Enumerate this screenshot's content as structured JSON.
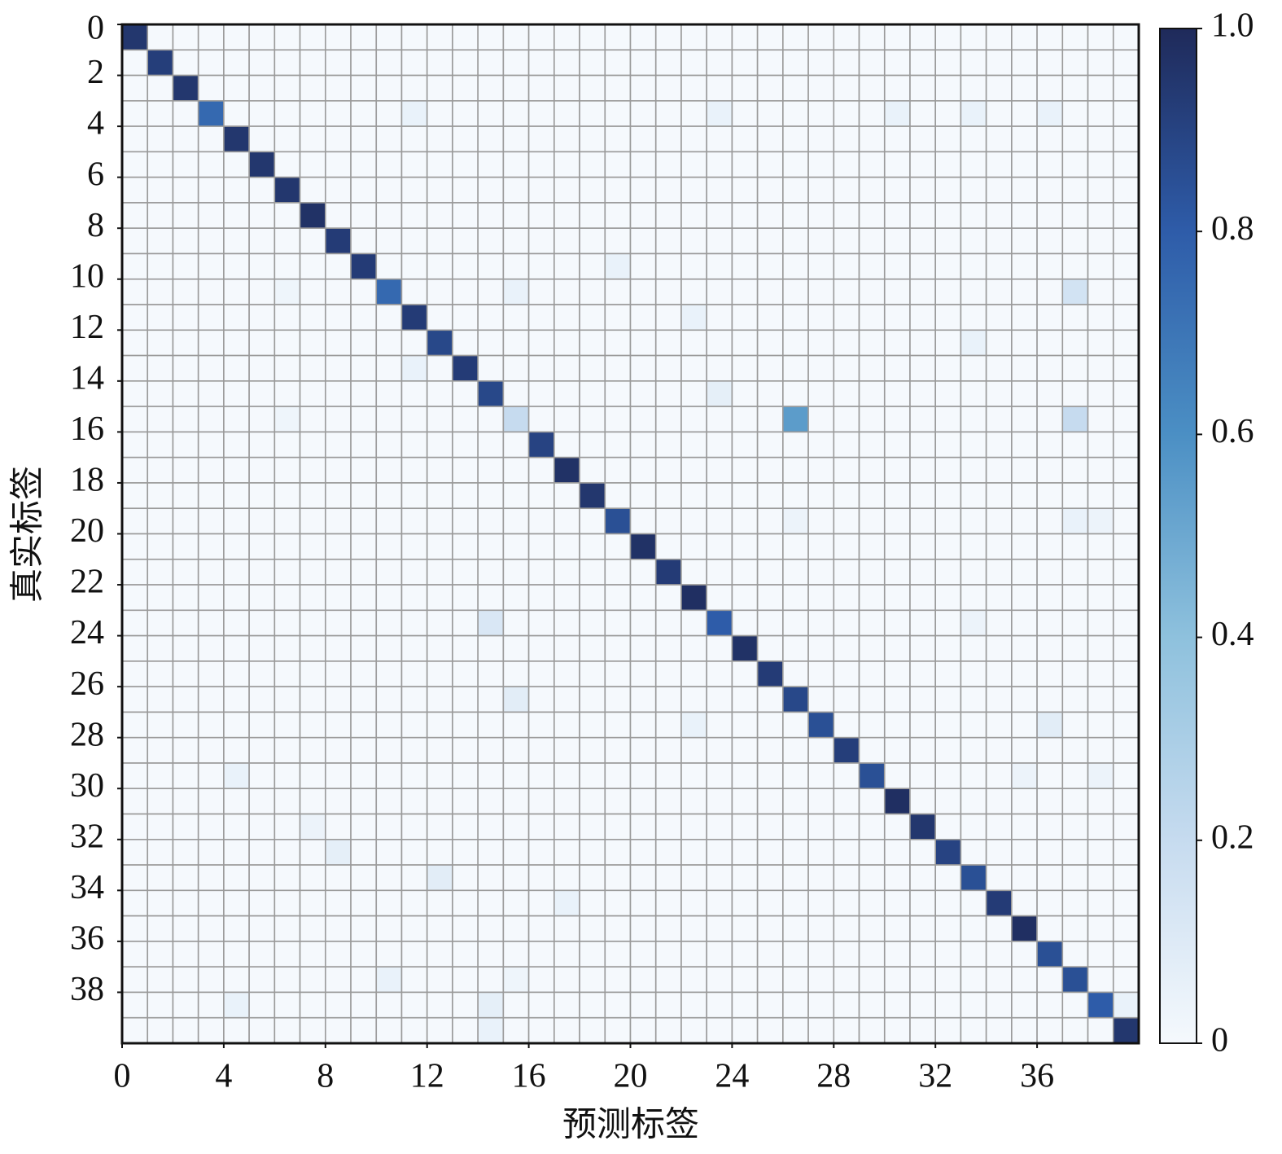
{
  "chart_data": {
    "type": "heatmap",
    "xlabel": "预测标签",
    "ylabel": "真实标签",
    "xlim": [
      0,
      40
    ],
    "ylim": [
      0,
      40
    ],
    "xticks": [
      0,
      4,
      8,
      12,
      16,
      20,
      24,
      28,
      32,
      36
    ],
    "yticks": [
      0,
      2,
      4,
      6,
      8,
      10,
      12,
      14,
      16,
      18,
      20,
      22,
      24,
      26,
      28,
      30,
      32,
      34,
      36,
      38
    ],
    "clim": [
      0,
      1
    ],
    "cticks": [
      0,
      0.2,
      0.4,
      0.6,
      0.8,
      {
        "value": 1,
        "label": "1.0"
      }
    ],
    "colormap": [
      "#f5f9fd",
      "#c6dbef",
      "#8ec1dd",
      "#4b8fc4",
      "#2e5ca9",
      "#1f2a5a"
    ],
    "values": [
      [
        0.95,
        0,
        0,
        0,
        0,
        0,
        0,
        0,
        0,
        0,
        0,
        0,
        0,
        0,
        0,
        0,
        0,
        0,
        0,
        0,
        0,
        0,
        0,
        0,
        0,
        0,
        0,
        0,
        0,
        0,
        0,
        0,
        0,
        0,
        0,
        0,
        0,
        0,
        0,
        0
      ],
      [
        0,
        0.92,
        0,
        0,
        0,
        0,
        0,
        0,
        0,
        0,
        0,
        0,
        0,
        0,
        0,
        0,
        0,
        0,
        0,
        0,
        0,
        0,
        0,
        0,
        0,
        0,
        0,
        0,
        0,
        0,
        0,
        0,
        0,
        0,
        0,
        0,
        0,
        0,
        0,
        0
      ],
      [
        0,
        0,
        0.95,
        0,
        0,
        0,
        0,
        0,
        0,
        0,
        0,
        0,
        0,
        0,
        0,
        0,
        0,
        0,
        0,
        0,
        0,
        0,
        0,
        0,
        0,
        0,
        0,
        0,
        0,
        0,
        0,
        0,
        0,
        0,
        0,
        0,
        0,
        0,
        0,
        0
      ],
      [
        0,
        0,
        0,
        0.75,
        0,
        0,
        0,
        0,
        0,
        0,
        0,
        0.05,
        0,
        0,
        0,
        0,
        0,
        0,
        0,
        0,
        0,
        0,
        0,
        0.05,
        0,
        0,
        0,
        0,
        0,
        0,
        0.05,
        0,
        0,
        0.05,
        0,
        0,
        0.05,
        0,
        0,
        0
      ],
      [
        0,
        0,
        0,
        0,
        0.95,
        0,
        0,
        0,
        0,
        0,
        0,
        0,
        0,
        0,
        0,
        0,
        0,
        0,
        0,
        0,
        0,
        0,
        0,
        0,
        0,
        0,
        0,
        0,
        0,
        0,
        0,
        0,
        0,
        0,
        0,
        0,
        0,
        0,
        0,
        0
      ],
      [
        0,
        0,
        0,
        0,
        0,
        0.95,
        0,
        0,
        0,
        0,
        0,
        0,
        0,
        0,
        0,
        0,
        0,
        0,
        0,
        0,
        0,
        0,
        0,
        0,
        0,
        0,
        0,
        0,
        0,
        0,
        0,
        0,
        0,
        0,
        0,
        0,
        0,
        0,
        0,
        0
      ],
      [
        0,
        0,
        0,
        0,
        0,
        0,
        0.95,
        0,
        0,
        0,
        0,
        0,
        0,
        0,
        0,
        0,
        0,
        0,
        0,
        0,
        0,
        0,
        0,
        0,
        0,
        0,
        0,
        0,
        0,
        0,
        0,
        0,
        0,
        0,
        0,
        0,
        0,
        0,
        0,
        0
      ],
      [
        0,
        0,
        0,
        0,
        0,
        0,
        0,
        0.97,
        0,
        0,
        0,
        0,
        0,
        0,
        0,
        0,
        0,
        0,
        0,
        0,
        0,
        0,
        0,
        0,
        0,
        0,
        0,
        0,
        0,
        0,
        0,
        0,
        0,
        0,
        0,
        0,
        0,
        0,
        0,
        0
      ],
      [
        0,
        0,
        0,
        0,
        0,
        0,
        0,
        0,
        0.93,
        0,
        0,
        0,
        0,
        0,
        0,
        0,
        0,
        0,
        0,
        0,
        0,
        0,
        0,
        0,
        0,
        0,
        0,
        0,
        0,
        0,
        0,
        0,
        0,
        0,
        0,
        0,
        0,
        0,
        0,
        0
      ],
      [
        0,
        0,
        0,
        0,
        0,
        0,
        0,
        0,
        0,
        0.93,
        0,
        0,
        0,
        0,
        0,
        0,
        0,
        0,
        0,
        0.05,
        0,
        0,
        0,
        0,
        0,
        0,
        0,
        0,
        0,
        0,
        0,
        0,
        0,
        0,
        0,
        0,
        0,
        0,
        0,
        0
      ],
      [
        0,
        0,
        0,
        0,
        0,
        0,
        0.03,
        0,
        0,
        0,
        0.75,
        0,
        0,
        0,
        0,
        0.05,
        0,
        0,
        0,
        0,
        0,
        0,
        0,
        0,
        0,
        0,
        0,
        0,
        0,
        0,
        0,
        0,
        0,
        0,
        0,
        0,
        0,
        0.15,
        0,
        0
      ],
      [
        0,
        0,
        0,
        0,
        0,
        0,
        0,
        0,
        0,
        0,
        0,
        0.93,
        0,
        0,
        0,
        0,
        0,
        0,
        0,
        0,
        0,
        0,
        0.05,
        0,
        0,
        0,
        0,
        0,
        0,
        0,
        0,
        0,
        0,
        0,
        0,
        0,
        0,
        0,
        0,
        0
      ],
      [
        0,
        0,
        0,
        0,
        0,
        0,
        0,
        0,
        0,
        0,
        0,
        0,
        0.88,
        0,
        0,
        0,
        0,
        0,
        0,
        0,
        0,
        0,
        0,
        0,
        0,
        0,
        0,
        0,
        0,
        0,
        0,
        0,
        0,
        0.05,
        0,
        0,
        0,
        0,
        0,
        0
      ],
      [
        0,
        0,
        0,
        0,
        0,
        0,
        0,
        0,
        0,
        0,
        0,
        0.05,
        0,
        0.93,
        0,
        0,
        0,
        0,
        0,
        0,
        0,
        0,
        0,
        0,
        0,
        0,
        0,
        0,
        0,
        0,
        0,
        0,
        0,
        0,
        0,
        0,
        0,
        0,
        0,
        0
      ],
      [
        0,
        0,
        0,
        0,
        0,
        0,
        0,
        0,
        0,
        0,
        0,
        0,
        0,
        0,
        0.88,
        0,
        0,
        0,
        0,
        0,
        0,
        0,
        0,
        0.07,
        0,
        0,
        0,
        0,
        0,
        0,
        0,
        0,
        0,
        0,
        0,
        0,
        0,
        0,
        0,
        0
      ],
      [
        0,
        0,
        0,
        0,
        0,
        0,
        0.03,
        0,
        0,
        0,
        0,
        0,
        0,
        0,
        0,
        0.2,
        0,
        0,
        0,
        0,
        0,
        0,
        0,
        0,
        0,
        0,
        0.55,
        0,
        0,
        0,
        0,
        0,
        0,
        0,
        0,
        0,
        0,
        0.2,
        0,
        0
      ],
      [
        0,
        0,
        0,
        0,
        0,
        0,
        0,
        0,
        0,
        0,
        0,
        0,
        0,
        0,
        0,
        0,
        0.9,
        0,
        0,
        0,
        0,
        0,
        0,
        0,
        0,
        0,
        0,
        0,
        0,
        0,
        0,
        0,
        0,
        0,
        0,
        0,
        0,
        0,
        0,
        0
      ],
      [
        0,
        0,
        0,
        0,
        0,
        0,
        0,
        0,
        0,
        0,
        0,
        0,
        0,
        0,
        0,
        0,
        0,
        0.97,
        0,
        0,
        0,
        0,
        0,
        0,
        0,
        0,
        0,
        0,
        0,
        0,
        0,
        0,
        0,
        0,
        0,
        0,
        0,
        0,
        0,
        0
      ],
      [
        0,
        0,
        0,
        0,
        0,
        0,
        0,
        0,
        0,
        0,
        0,
        0,
        0,
        0,
        0,
        0,
        0,
        0,
        0.95,
        0,
        0,
        0,
        0,
        0,
        0,
        0,
        0,
        0,
        0,
        0,
        0,
        0,
        0,
        0,
        0,
        0,
        0,
        0,
        0,
        0
      ],
      [
        0,
        0,
        0,
        0,
        0,
        0,
        0,
        0,
        0,
        0,
        0,
        0,
        0,
        0,
        0,
        0,
        0,
        0,
        0,
        0.85,
        0,
        0,
        0,
        0,
        0,
        0,
        0.04,
        0,
        0,
        0,
        0,
        0,
        0,
        0,
        0,
        0,
        0,
        0.05,
        0.04,
        0
      ],
      [
        0,
        0,
        0,
        0,
        0,
        0,
        0,
        0,
        0,
        0,
        0,
        0,
        0,
        0,
        0,
        0,
        0,
        0,
        0,
        0,
        0.97,
        0,
        0,
        0,
        0,
        0,
        0,
        0,
        0,
        0,
        0,
        0,
        0,
        0,
        0,
        0,
        0,
        0,
        0,
        0
      ],
      [
        0,
        0,
        0,
        0,
        0,
        0,
        0,
        0,
        0,
        0,
        0,
        0,
        0,
        0,
        0,
        0,
        0,
        0,
        0,
        0,
        0,
        0.93,
        0,
        0,
        0,
        0,
        0,
        0,
        0,
        0,
        0,
        0,
        0,
        0,
        0,
        0,
        0,
        0,
        0,
        0
      ],
      [
        0,
        0,
        0,
        0,
        0,
        0,
        0,
        0,
        0,
        0,
        0,
        0,
        0,
        0,
        0,
        0,
        0,
        0,
        0,
        0,
        0,
        0,
        0.98,
        0,
        0,
        0,
        0,
        0,
        0,
        0,
        0,
        0,
        0,
        0,
        0,
        0,
        0,
        0,
        0,
        0
      ],
      [
        0,
        0,
        0,
        0,
        0,
        0,
        0,
        0,
        0,
        0,
        0,
        0,
        0,
        0,
        0.12,
        0,
        0,
        0,
        0,
        0,
        0,
        0,
        0,
        0.8,
        0,
        0,
        0,
        0,
        0,
        0,
        0,
        0,
        0,
        0.04,
        0,
        0,
        0,
        0,
        0,
        0
      ],
      [
        0,
        0,
        0,
        0,
        0,
        0,
        0,
        0,
        0,
        0,
        0,
        0,
        0,
        0,
        0,
        0,
        0,
        0,
        0,
        0,
        0,
        0,
        0,
        0,
        0.97,
        0,
        0,
        0,
        0,
        0,
        0,
        0,
        0,
        0,
        0,
        0,
        0,
        0,
        0,
        0
      ],
      [
        0,
        0,
        0,
        0,
        0,
        0,
        0,
        0,
        0,
        0,
        0,
        0,
        0,
        0,
        0,
        0,
        0,
        0,
        0,
        0,
        0,
        0,
        0,
        0,
        0,
        0.93,
        0,
        0,
        0,
        0,
        0,
        0,
        0,
        0,
        0,
        0,
        0,
        0,
        0,
        0
      ],
      [
        0,
        0,
        0,
        0,
        0,
        0,
        0,
        0,
        0,
        0,
        0,
        0,
        0,
        0,
        0,
        0.08,
        0,
        0,
        0,
        0,
        0,
        0,
        0,
        0,
        0,
        0,
        0.88,
        0,
        0,
        0,
        0,
        0,
        0,
        0,
        0,
        0,
        0,
        0,
        0,
        0
      ],
      [
        0,
        0,
        0,
        0,
        0,
        0,
        0,
        0,
        0,
        0,
        0,
        0,
        0,
        0,
        0,
        0,
        0,
        0,
        0,
        0,
        0,
        0,
        0.05,
        0,
        0,
        0,
        0,
        0.85,
        0,
        0,
        0,
        0,
        0,
        0,
        0,
        0,
        0.08,
        0,
        0,
        0
      ],
      [
        0,
        0,
        0,
        0,
        0,
        0,
        0,
        0,
        0,
        0,
        0,
        0,
        0,
        0,
        0,
        0,
        0,
        0,
        0,
        0,
        0,
        0,
        0,
        0,
        0,
        0,
        0,
        0,
        0.92,
        0,
        0,
        0,
        0,
        0,
        0,
        0,
        0,
        0,
        0,
        0
      ],
      [
        0,
        0,
        0,
        0,
        0.05,
        0,
        0,
        0,
        0,
        0,
        0,
        0,
        0,
        0,
        0,
        0,
        0,
        0,
        0,
        0,
        0,
        0,
        0,
        0,
        0,
        0,
        0,
        0,
        0,
        0.85,
        0,
        0,
        0,
        0,
        0,
        0.04,
        0,
        0,
        0.04,
        0
      ],
      [
        0,
        0,
        0,
        0,
        0,
        0,
        0,
        0,
        0,
        0,
        0,
        0,
        0,
        0,
        0,
        0,
        0,
        0,
        0,
        0,
        0,
        0,
        0,
        0,
        0,
        0,
        0,
        0,
        0,
        0,
        0.98,
        0,
        0,
        0,
        0,
        0,
        0,
        0,
        0,
        0
      ],
      [
        0,
        0,
        0,
        0,
        0,
        0,
        0,
        0.04,
        0,
        0,
        0,
        0,
        0,
        0,
        0,
        0,
        0,
        0,
        0,
        0,
        0,
        0,
        0,
        0,
        0,
        0,
        0,
        0,
        0,
        0,
        0,
        0.95,
        0,
        0,
        0,
        0,
        0,
        0,
        0,
        0
      ],
      [
        0,
        0,
        0,
        0,
        0,
        0,
        0,
        0,
        0.07,
        0,
        0,
        0,
        0,
        0,
        0,
        0,
        0,
        0,
        0,
        0,
        0,
        0,
        0,
        0,
        0,
        0,
        0,
        0,
        0,
        0,
        0,
        0,
        0.9,
        0,
        0,
        0,
        0,
        0,
        0,
        0
      ],
      [
        0,
        0,
        0,
        0,
        0,
        0,
        0,
        0,
        0,
        0,
        0,
        0,
        0.08,
        0,
        0,
        0,
        0,
        0,
        0,
        0,
        0,
        0,
        0,
        0,
        0,
        0,
        0,
        0,
        0,
        0,
        0,
        0,
        0,
        0.85,
        0,
        0,
        0,
        0,
        0,
        0
      ],
      [
        0,
        0,
        0,
        0,
        0,
        0,
        0,
        0,
        0,
        0,
        0,
        0,
        0,
        0,
        0,
        0,
        0,
        0.05,
        0,
        0,
        0,
        0,
        0,
        0,
        0,
        0,
        0,
        0,
        0,
        0,
        0,
        0,
        0,
        0,
        0.93,
        0,
        0,
        0,
        0,
        0
      ],
      [
        0,
        0,
        0,
        0,
        0,
        0,
        0,
        0,
        0,
        0,
        0,
        0,
        0,
        0,
        0,
        0,
        0,
        0,
        0,
        0,
        0,
        0,
        0,
        0,
        0,
        0,
        0,
        0,
        0,
        0,
        0,
        0,
        0,
        0,
        0,
        0.98,
        0,
        0,
        0,
        0
      ],
      [
        0,
        0,
        0,
        0,
        0,
        0,
        0,
        0,
        0,
        0,
        0,
        0,
        0,
        0,
        0,
        0,
        0,
        0,
        0,
        0,
        0,
        0,
        0,
        0,
        0,
        0,
        0,
        0,
        0,
        0,
        0,
        0,
        0,
        0,
        0,
        0,
        0.85,
        0,
        0,
        0
      ],
      [
        0,
        0,
        0,
        0,
        0,
        0,
        0,
        0,
        0,
        0,
        0.05,
        0,
        0,
        0,
        0,
        0.03,
        0,
        0,
        0,
        0,
        0,
        0,
        0,
        0,
        0,
        0,
        0,
        0,
        0,
        0,
        0,
        0,
        0,
        0,
        0,
        0,
        0,
        0.85,
        0,
        0
      ],
      [
        0,
        0,
        0,
        0,
        0.05,
        0,
        0,
        0,
        0,
        0,
        0,
        0,
        0,
        0,
        0.07,
        0,
        0,
        0,
        0,
        0,
        0,
        0,
        0,
        0,
        0,
        0,
        0,
        0,
        0,
        0,
        0,
        0,
        0,
        0,
        0,
        0,
        0,
        0,
        0.8,
        0.05
      ],
      [
        0,
        0,
        0,
        0,
        0,
        0,
        0,
        0,
        0,
        0,
        0,
        0,
        0,
        0,
        0.05,
        0,
        0,
        0,
        0,
        0,
        0,
        0,
        0,
        0,
        0,
        0,
        0,
        0,
        0,
        0,
        0,
        0,
        0,
        0,
        0,
        0,
        0,
        0,
        0,
        0.95
      ]
    ]
  }
}
